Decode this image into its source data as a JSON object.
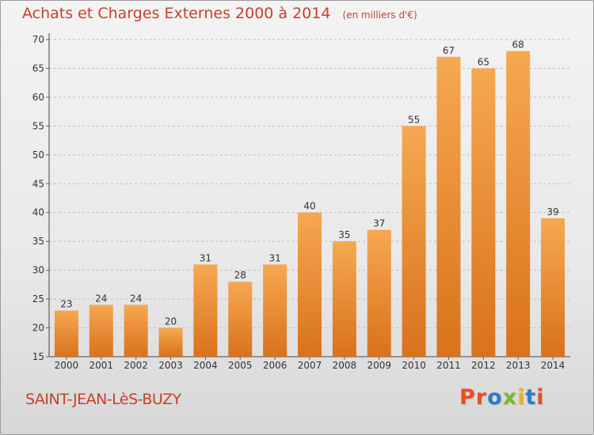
{
  "header": {
    "title": "Achats et Charges Externes 2000 à 2014",
    "subtitle": "(en milliers d'€)"
  },
  "footer": {
    "commune": "SAINT-JEAN-LèS-BUZY",
    "brand": "Proxiti",
    "brand_colors": [
      "#e8501e",
      "#e8501e",
      "#2d7cc3",
      "#7aba2a",
      "#f2b11a",
      "#2d7cc3",
      "#e8501e"
    ]
  },
  "colors": {
    "bar_light": "#f6a851",
    "bar_dark": "#d9721c",
    "title": "#c7402a",
    "grid": "#bdbdbd"
  },
  "chart_data": {
    "type": "bar",
    "categories": [
      "2000",
      "2001",
      "2002",
      "2003",
      "2004",
      "2005",
      "2006",
      "2007",
      "2008",
      "2009",
      "2010",
      "2011",
      "2012",
      "2013",
      "2014"
    ],
    "values": [
      23,
      24,
      24,
      20,
      31,
      28,
      31,
      40,
      35,
      37,
      55,
      67,
      65,
      68,
      39
    ],
    "ylim": [
      15,
      70
    ],
    "yticks": [
      15,
      20,
      25,
      30,
      35,
      40,
      45,
      50,
      55,
      60,
      65,
      70
    ],
    "grid": true,
    "data_labels": true
  }
}
